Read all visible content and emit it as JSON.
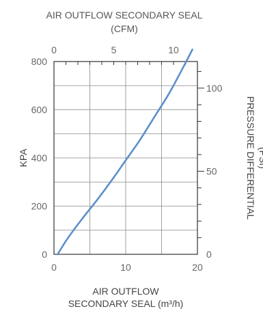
{
  "chart_data": {
    "type": "line",
    "title": "AIR OUTFLOW SECONDARY SEAL",
    "subtitle": "(CFM)",
    "xlabel": [
      "AIR OUTFLOW",
      "SECONDARY SEAL (m³/h)"
    ],
    "ylabel": "KPA",
    "y2label": [
      "PRESSURE DIFFERENTIAL",
      "(PSI)"
    ],
    "xlim": [
      0,
      20
    ],
    "ylim": [
      0,
      800
    ],
    "x_ticks": [
      "0",
      "10",
      "20"
    ],
    "y_ticks": [
      "0",
      "200",
      "400",
      "600",
      "800"
    ],
    "top_axis": {
      "lim": [
        0,
        12
      ],
      "ticks": [
        "0",
        "5",
        "10"
      ]
    },
    "right_axis": {
      "lim": [
        0,
        116
      ],
      "ticks": [
        "0",
        "50",
        "100"
      ]
    },
    "grid": true,
    "series": [
      {
        "color": "#5b8fcb",
        "x": [
          0.5,
          2,
          4,
          6,
          8,
          10,
          12,
          14,
          16,
          18,
          19.3
        ],
        "y": [
          0,
          70,
          150,
          225,
          305,
          390,
          475,
          570,
          665,
          775,
          850
        ]
      }
    ]
  }
}
